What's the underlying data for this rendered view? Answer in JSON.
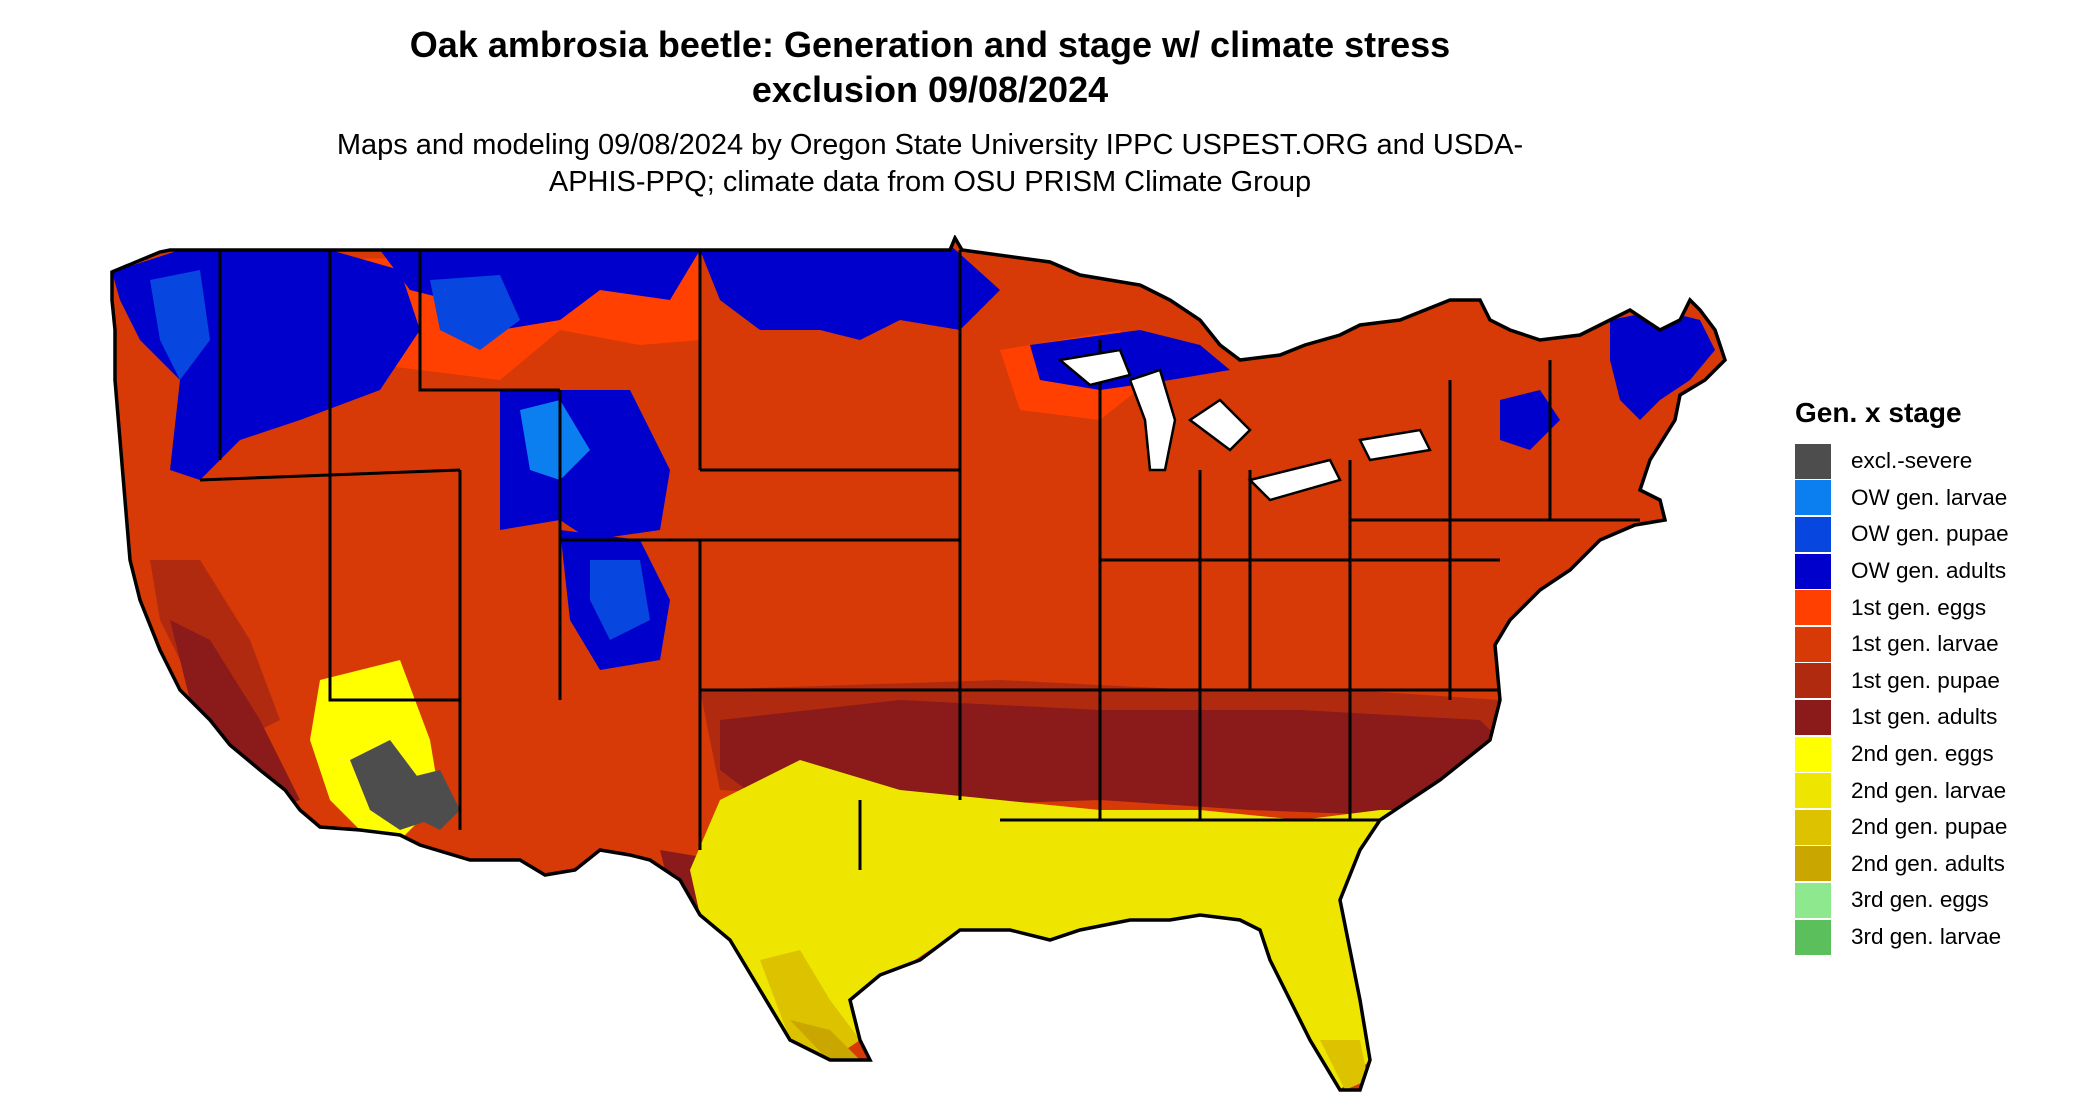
{
  "title": "Oak ambrosia beetle: Generation and stage w/ climate stress exclusion 09/08/2024",
  "subtitle": "Maps and modeling 09/08/2024 by Oregon State University IPPC USPEST.ORG and USDA-APHIS-PPQ; climate data from OSU PRISM Climate Group",
  "legend": {
    "title": "Gen. x stage",
    "items": [
      {
        "label": "excl.-severe",
        "color": "#4d4d4d"
      },
      {
        "label": "OW gen. larvae",
        "color": "#0b7ff0"
      },
      {
        "label": "OW gen. pupae",
        "color": "#0746df"
      },
      {
        "label": "OW gen. adults",
        "color": "#0000cc"
      },
      {
        "label": "1st gen. eggs",
        "color": "#ff4000"
      },
      {
        "label": "1st gen. larvae",
        "color": "#d73a06"
      },
      {
        "label": "1st gen. pupae",
        "color": "#b02a10"
      },
      {
        "label": "1st gen. adults",
        "color": "#8b1a1a"
      },
      {
        "label": "2nd gen. eggs",
        "color": "#ffff00"
      },
      {
        "label": "2nd gen. larvae",
        "color": "#eee600"
      },
      {
        "label": "2nd gen. pupae",
        "color": "#ddc200"
      },
      {
        "label": "2nd gen. adults",
        "color": "#c9a600"
      },
      {
        "label": "3rd gen. eggs",
        "color": "#8ee88e"
      },
      {
        "label": "3rd gen. larvae",
        "color": "#5bbf5b"
      }
    ]
  }
}
